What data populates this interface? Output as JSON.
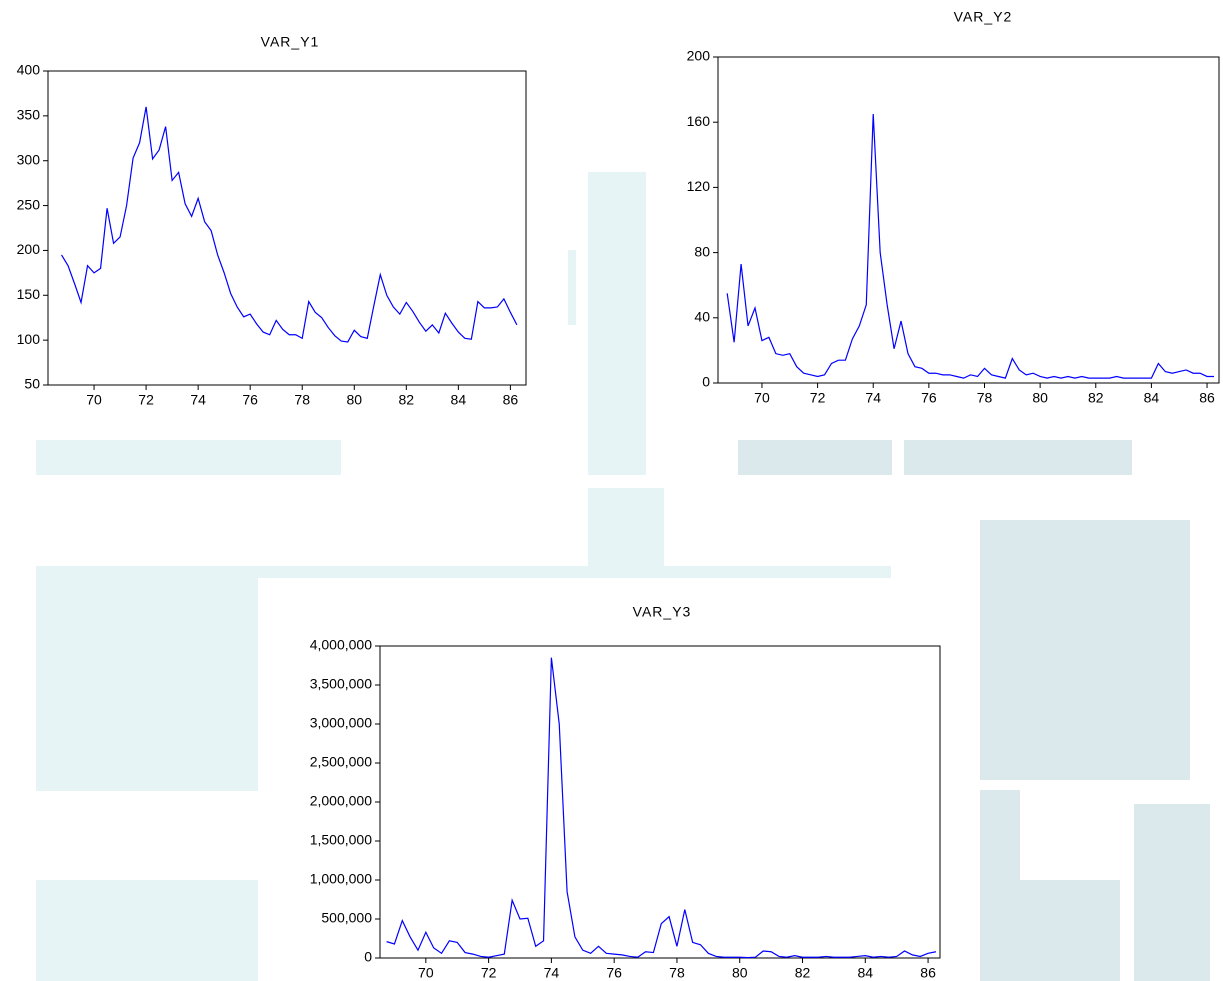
{
  "chart_data": [
    {
      "type": "line",
      "title": "VAR_Y1",
      "color": "#0000ff",
      "x": [
        68.75,
        69,
        69.25,
        69.5,
        69.75,
        70,
        70.25,
        70.5,
        70.75,
        71,
        71.25,
        71.5,
        71.75,
        72,
        72.25,
        72.5,
        72.75,
        73,
        73.25,
        73.5,
        73.75,
        74,
        74.25,
        74.5,
        74.75,
        75,
        75.25,
        75.5,
        75.75,
        76,
        76.25,
        76.5,
        76.75,
        77,
        77.25,
        77.5,
        77.75,
        78,
        78.25,
        78.5,
        78.75,
        79,
        79.25,
        79.5,
        79.75,
        80,
        80.25,
        80.5,
        80.75,
        81,
        81.25,
        81.5,
        81.75,
        82,
        82.25,
        82.5,
        82.75,
        83,
        83.25,
        83.5,
        83.75,
        84,
        84.25,
        84.5,
        84.75,
        85,
        85.25,
        85.5,
        85.75,
        86,
        86.25
      ],
      "values": [
        195,
        183,
        163,
        142,
        183,
        175,
        180,
        247,
        208,
        215,
        250,
        303,
        320,
        360,
        302,
        312,
        338,
        278,
        287,
        252,
        238,
        258,
        232,
        222,
        195,
        175,
        152,
        137,
        126,
        129,
        118,
        109,
        106,
        122,
        112,
        106,
        106,
        102,
        143,
        131,
        125,
        114,
        105,
        99,
        98,
        111,
        104,
        102,
        138,
        173,
        150,
        137,
        129,
        142,
        132,
        120,
        110,
        117,
        108,
        130,
        119,
        109,
        102,
        101,
        143,
        136,
        136,
        137,
        146,
        131,
        117
      ],
      "xlim": [
        68.23,
        86.6
      ],
      "xticks": [
        70,
        72,
        74,
        76,
        78,
        80,
        82,
        84,
        86
      ],
      "ylim": [
        50,
        400
      ],
      "yticks": [
        50,
        100,
        150,
        200,
        250,
        300,
        350,
        400
      ]
    },
    {
      "type": "line",
      "title": "VAR_Y2",
      "color": "#0000ff",
      "x": [
        68.75,
        69,
        69.25,
        69.5,
        69.75,
        70,
        70.25,
        70.5,
        70.75,
        71,
        71.25,
        71.5,
        71.75,
        72,
        72.25,
        72.5,
        72.75,
        73,
        73.25,
        73.5,
        73.75,
        74,
        74.25,
        74.5,
        74.75,
        75,
        75.25,
        75.5,
        75.75,
        76,
        76.25,
        76.5,
        76.75,
        77,
        77.25,
        77.5,
        77.75,
        78,
        78.25,
        78.5,
        78.75,
        79,
        79.25,
        79.5,
        79.75,
        80,
        80.25,
        80.5,
        80.75,
        81,
        81.25,
        81.5,
        81.75,
        82,
        82.25,
        82.5,
        82.75,
        83,
        83.25,
        83.5,
        83.75,
        84,
        84.25,
        84.5,
        84.75,
        85,
        85.25,
        85.5,
        85.75,
        86,
        86.25
      ],
      "values": [
        55,
        25,
        73,
        35,
        46,
        26,
        28,
        18,
        17,
        18,
        10,
        6,
        5,
        4,
        5,
        12,
        14,
        14,
        27,
        35,
        48,
        165,
        80,
        48,
        21,
        38,
        18,
        10,
        9,
        6,
        6,
        5,
        5,
        4,
        3,
        5,
        4,
        9,
        5,
        4,
        3,
        15,
        8,
        5,
        6,
        4,
        3,
        4,
        3,
        4,
        3,
        4,
        3,
        3,
        3,
        3,
        4,
        3,
        3,
        3,
        3,
        3,
        12,
        7,
        6,
        7,
        8,
        6,
        6,
        4,
        4
      ],
      "xlim": [
        68.42,
        86.43
      ],
      "xticks": [
        70,
        72,
        74,
        76,
        78,
        80,
        82,
        84,
        86
      ],
      "ylim": [
        0,
        200
      ],
      "yticks": [
        0,
        40,
        80,
        120,
        160,
        200
      ]
    },
    {
      "type": "line",
      "title": "VAR_Y3",
      "color": "#0000ff",
      "x": [
        68.75,
        69,
        69.25,
        69.5,
        69.75,
        70,
        70.25,
        70.5,
        70.75,
        71,
        71.25,
        71.5,
        71.75,
        72,
        72.25,
        72.5,
        72.75,
        73,
        73.25,
        73.5,
        73.75,
        74,
        74.25,
        74.5,
        74.75,
        75,
        75.25,
        75.5,
        75.75,
        76,
        76.25,
        76.5,
        76.75,
        77,
        77.25,
        77.5,
        77.75,
        78,
        78.25,
        78.5,
        78.75,
        79,
        79.25,
        79.5,
        79.75,
        80,
        80.25,
        80.5,
        80.75,
        81,
        81.25,
        81.5,
        81.75,
        82,
        82.25,
        82.5,
        82.75,
        83,
        83.25,
        83.5,
        83.75,
        84,
        84.25,
        84.5,
        84.75,
        85,
        85.25,
        85.5,
        85.75,
        86,
        86.25
      ],
      "values": [
        210000,
        180000,
        480000,
        270000,
        100000,
        330000,
        130000,
        60000,
        220000,
        200000,
        70000,
        50000,
        20000,
        10000,
        30000,
        50000,
        740000,
        500000,
        510000,
        150000,
        220000,
        3850000,
        3000000,
        850000,
        270000,
        100000,
        60000,
        150000,
        60000,
        50000,
        40000,
        20000,
        10000,
        80000,
        70000,
        440000,
        530000,
        150000,
        620000,
        200000,
        170000,
        60000,
        20000,
        10000,
        10000,
        10000,
        5000,
        10000,
        90000,
        80000,
        20000,
        10000,
        30000,
        10000,
        10000,
        10000,
        20000,
        10000,
        10000,
        10000,
        20000,
        30000,
        10000,
        20000,
        10000,
        20000,
        90000,
        40000,
        20000,
        60000,
        80000
      ],
      "xlim": [
        68.54,
        86.38
      ],
      "xticks": [
        70,
        72,
        74,
        76,
        78,
        80,
        82,
        84,
        86
      ],
      "ylim": [
        0,
        4000000
      ],
      "yticks": [
        0,
        {
          "value": 500000,
          "label": "500,000"
        },
        {
          "value": 1000000,
          "label": "1,000,000"
        },
        {
          "value": 1500000,
          "label": "1,500,000"
        },
        {
          "value": 2000000,
          "label": "2,000,000"
        },
        {
          "value": 2500000,
          "label": "2,500,000"
        },
        {
          "value": 3000000,
          "label": "3,000,000"
        },
        {
          "value": 3500000,
          "label": "3,500,000"
        },
        {
          "value": 4000000,
          "label": "4,000,000"
        }
      ]
    }
  ]
}
